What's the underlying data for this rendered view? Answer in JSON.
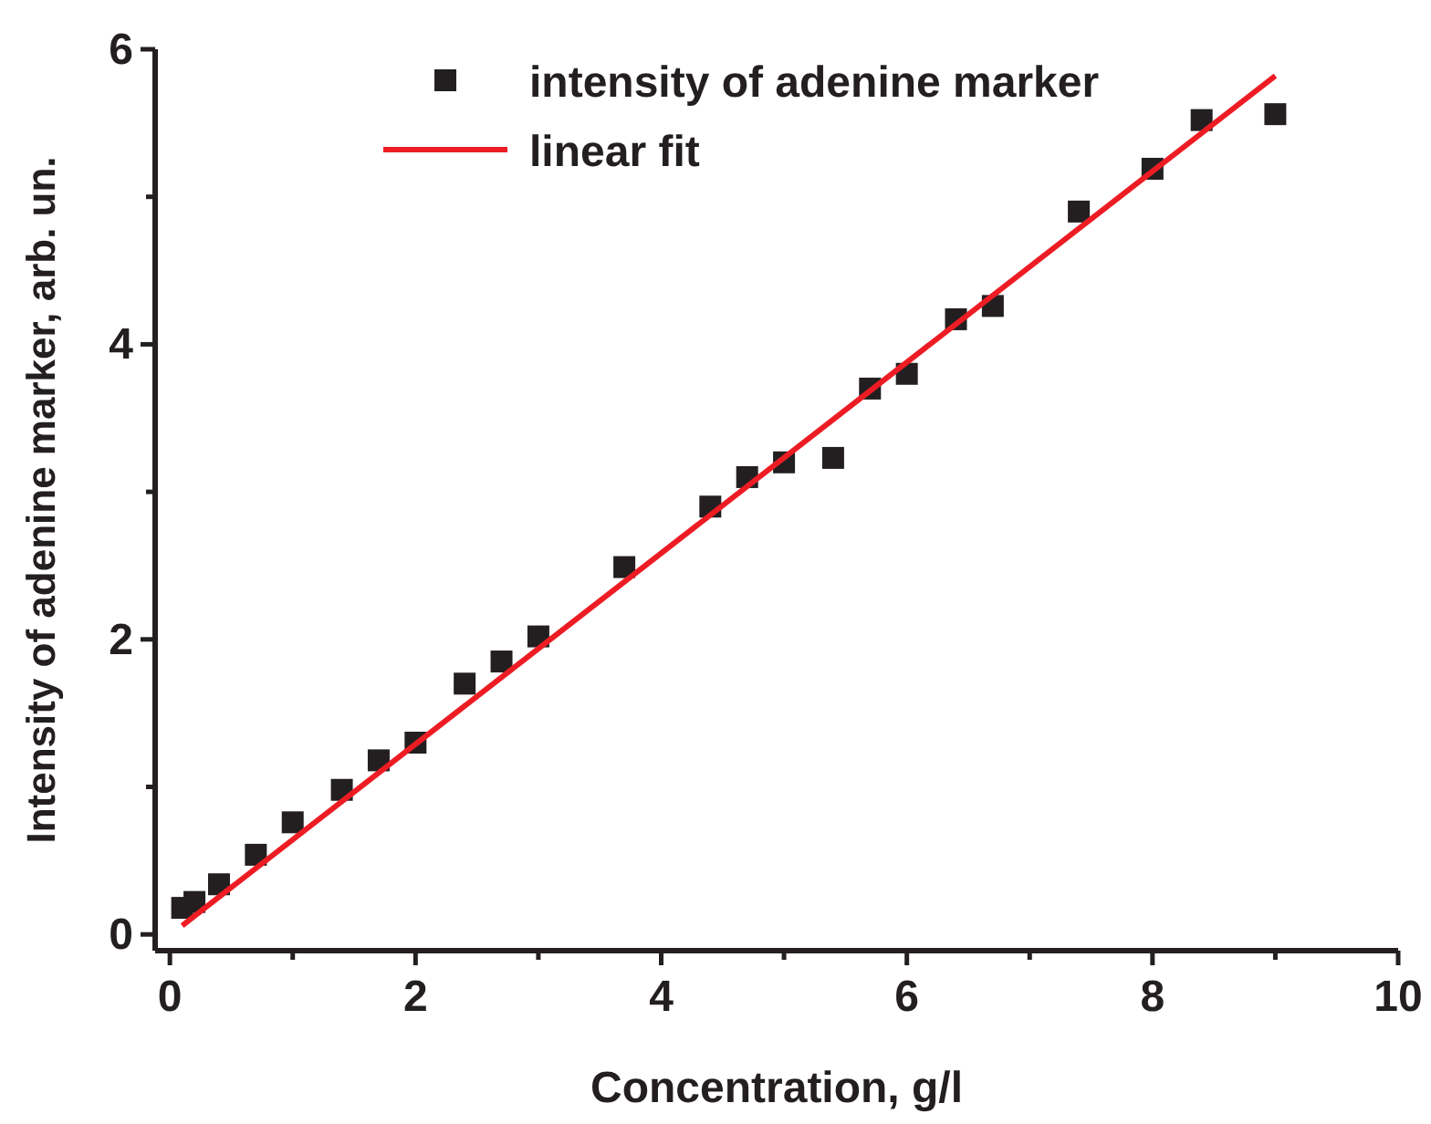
{
  "chart_data": {
    "type": "scatter",
    "xlabel": "Concentration, g/l",
    "ylabel": "Intensity of adenine marker, arb. un.",
    "xlim": [
      -0.12,
      10
    ],
    "ylim": [
      -0.11,
      6
    ],
    "xticks": [
      0,
      {
        "value": 1,
        "label": null
      },
      2,
      {
        "value": 3,
        "label": null
      },
      4,
      {
        "value": 5,
        "label": null
      },
      6,
      {
        "value": 7,
        "label": null
      },
      8,
      {
        "value": 9,
        "label": null
      },
      10
    ],
    "yticks": [
      0,
      {
        "value": 1,
        "label": null
      },
      2,
      {
        "value": 3,
        "label": null
      },
      4,
      {
        "value": 5,
        "label": null
      },
      6
    ],
    "legend": "top",
    "grid": false,
    "series": [
      {
        "name": "intensity of adenine marker",
        "marker": "square",
        "color": "#231f20",
        "x": [
          0.1,
          0.2,
          0.4,
          0.7,
          1.0,
          1.4,
          1.7,
          2.0,
          2.4,
          2.7,
          3.0,
          3.7,
          4.4,
          4.7,
          5.0,
          5.4,
          5.7,
          6.0,
          6.4,
          6.7,
          7.4,
          8.0,
          8.4,
          9.0
        ],
        "values": [
          0.18,
          0.22,
          0.34,
          0.54,
          0.76,
          0.98,
          1.18,
          1.3,
          1.7,
          1.85,
          2.02,
          2.49,
          2.9,
          3.1,
          3.2,
          3.23,
          3.7,
          3.8,
          4.17,
          4.26,
          4.9,
          5.19,
          5.52,
          5.56
        ]
      },
      {
        "name": "linear fit",
        "type": "line",
        "marker": "none",
        "line_style": "solid",
        "color": "#ed1c24",
        "x": [
          0.1,
          9.0
        ],
        "values": [
          0.06,
          5.82
        ]
      }
    ]
  }
}
